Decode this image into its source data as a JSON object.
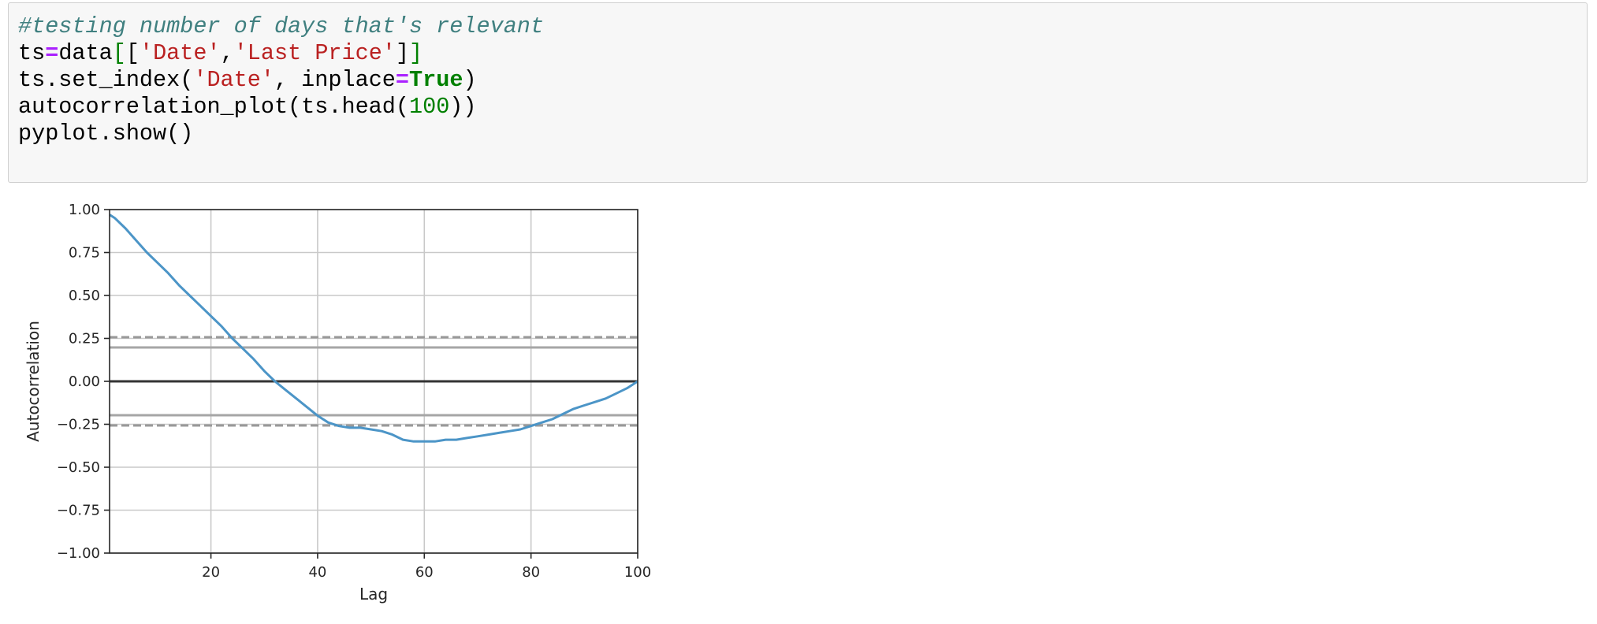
{
  "code_cell": {
    "lines": [
      [
        {
          "text": "#testing number of days that's relevant",
          "kind": "comment"
        }
      ],
      [
        {
          "text": "ts",
          "kind": "plain"
        },
        {
          "text": "=",
          "kind": "op"
        },
        {
          "text": "data",
          "kind": "plain"
        },
        {
          "text": "[",
          "kind": "bracket"
        },
        {
          "text": "[",
          "kind": "plain"
        },
        {
          "text": "'Date'",
          "kind": "str"
        },
        {
          "text": ",",
          "kind": "plain"
        },
        {
          "text": "'Last Price'",
          "kind": "str"
        },
        {
          "text": "]",
          "kind": "plain"
        },
        {
          "text": "]",
          "kind": "bracket"
        }
      ],
      [
        {
          "text": "ts.set_index(",
          "kind": "plain"
        },
        {
          "text": "'Date'",
          "kind": "str"
        },
        {
          "text": ", inplace",
          "kind": "plain"
        },
        {
          "text": "=",
          "kind": "op"
        },
        {
          "text": "True",
          "kind": "kw"
        },
        {
          "text": ")",
          "kind": "plain"
        }
      ],
      [
        {
          "text": "autocorrelation_plot(ts.head(",
          "kind": "plain"
        },
        {
          "text": "100",
          "kind": "num"
        },
        {
          "text": "))",
          "kind": "plain"
        }
      ],
      [
        {
          "text": "pyplot.show()",
          "kind": "plain"
        }
      ]
    ]
  },
  "chart_data": {
    "type": "line",
    "xlabel": "Lag",
    "ylabel": "Autocorrelation",
    "xlim": [
      1,
      100
    ],
    "ylim": [
      -1.0,
      1.0
    ],
    "xticks": [
      20,
      40,
      60,
      80,
      100
    ],
    "xtick_labels": [
      "20",
      "40",
      "60",
      "80",
      "100"
    ],
    "yticks": [
      1.0,
      0.75,
      0.5,
      0.25,
      0.0,
      -0.25,
      -0.5,
      -0.75,
      -1.0
    ],
    "ytick_labels": [
      "1.00",
      "0.75",
      "0.50",
      "0.25",
      "0.00",
      "−0.25",
      "−0.50",
      "−0.75",
      "−1.00"
    ],
    "grid": true,
    "series": [
      {
        "color": "#4c95c7",
        "x": [
          1,
          2,
          4,
          6,
          8,
          10,
          12,
          14,
          16,
          18,
          20,
          22,
          24,
          26,
          28,
          30,
          32,
          34,
          36,
          38,
          40,
          42,
          44,
          46,
          48,
          50,
          52,
          54,
          56,
          58,
          60,
          62,
          64,
          66,
          68,
          70,
          72,
          74,
          76,
          78,
          80,
          82,
          84,
          86,
          88,
          90,
          92,
          94,
          96,
          98,
          100
        ],
        "y": [
          0.97,
          0.95,
          0.89,
          0.82,
          0.75,
          0.69,
          0.63,
          0.56,
          0.5,
          0.44,
          0.38,
          0.32,
          0.25,
          0.19,
          0.13,
          0.06,
          0.0,
          -0.05,
          -0.1,
          -0.15,
          -0.2,
          -0.24,
          -0.26,
          -0.27,
          -0.27,
          -0.28,
          -0.29,
          -0.31,
          -0.34,
          -0.35,
          -0.35,
          -0.35,
          -0.34,
          -0.34,
          -0.33,
          -0.32,
          -0.31,
          -0.3,
          -0.29,
          -0.28,
          -0.26,
          -0.24,
          -0.22,
          -0.19,
          -0.16,
          -0.14,
          -0.12,
          -0.1,
          -0.07,
          -0.04,
          0.0
        ]
      }
    ],
    "reference_lines": [
      {
        "y": 0.0,
        "style": "solid",
        "color": "#333333"
      },
      {
        "y": 0.197,
        "style": "solid",
        "color": "#a6a6a6"
      },
      {
        "y": -0.197,
        "style": "solid",
        "color": "#a6a6a6"
      },
      {
        "y": 0.257,
        "style": "dashed",
        "color": "#999999"
      },
      {
        "y": -0.257,
        "style": "dashed",
        "color": "#999999"
      }
    ]
  }
}
